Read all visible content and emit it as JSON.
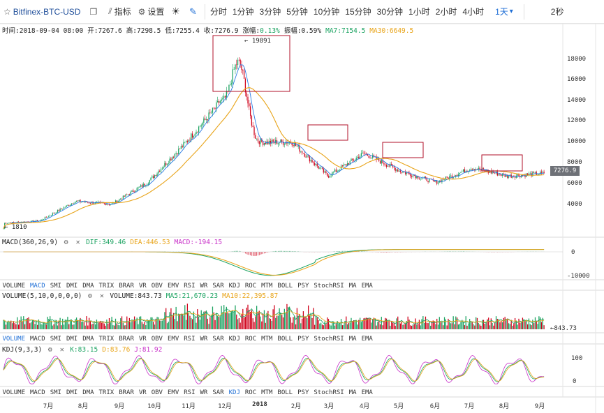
{
  "toolbar": {
    "star_icon": "star-icon",
    "symbol": "Bitfinex-BTC-USD",
    "copy_icon": "copy-icon",
    "indicator_label": "指标",
    "settings_label": "设置",
    "theme_icon": "sun-icon",
    "draw_icon": "pencil-icon",
    "intervals": [
      "分时",
      "1分钟",
      "3分钟",
      "5分钟",
      "10分钟",
      "15分钟",
      "30分钟",
      "1小时",
      "2小时",
      "4小时"
    ],
    "selected_interval": "1天",
    "dropdown_icon": "▾",
    "refresh": "2秒"
  },
  "info": {
    "time": "时间:2018-09-04 08:00",
    "open": "开:7267.6",
    "high": "高:7298.5",
    "low": "低:7255.4",
    "close": "收:7276.9",
    "change_label": "涨幅:",
    "change_value": "0.13%",
    "amplitude": "振幅:0.59%",
    "ma7": "MA7:7154.5",
    "ma30": "MA30:6649.5"
  },
  "macd": {
    "title": "MACD(360,26,9)",
    "dif": "DIF:349.46",
    "dea": "DEA:446.53",
    "macd": "MACD:-194.15"
  },
  "volume": {
    "title": "VOLUME(5,10,0,0,0,0)",
    "vol": "VOLUME:843.73",
    "ma5": "MA5:21,670.23",
    "ma10": "MA10:22,395.87"
  },
  "kdj": {
    "title": "KDJ(9,3,3)",
    "k": "K:83.15",
    "d": "D:83.76",
    "j": "J:81.92"
  },
  "indicator_tabs": [
    "VOLUME",
    "MACD",
    "SMI",
    "DMI",
    "DMA",
    "TRIX",
    "BRAR",
    "VR",
    "OBV",
    "EMV",
    "RSI",
    "WR",
    "SAR",
    "KDJ",
    "ROC",
    "MTM",
    "BOLL",
    "PSY",
    "StochRSI",
    "MA",
    "EMA"
  ],
  "tabs_row1_active": "MACD",
  "tabs_row2_active": "VOLUME",
  "tabs_row3_active": "KDJ",
  "price_axis": [
    "18000",
    "16000",
    "14000",
    "12000",
    "10000",
    "8000",
    "6000",
    "4000"
  ],
  "macd_axis": [
    "0",
    "-10000"
  ],
  "volume_last": "843.73",
  "kdj_axis": [
    "100",
    "0"
  ],
  "x_axis": [
    "7月",
    "8月",
    "9月",
    "10月",
    "11月",
    "12月",
    "2018",
    "2月",
    "3月",
    "4月",
    "5月",
    "6月",
    "7月",
    "8月",
    "9月"
  ],
  "annotations": {
    "high": "19891",
    "low": "1810"
  },
  "last_price": "7276.9",
  "colors": {
    "up": "#1aa260",
    "down": "#d0021b",
    "ma7": "#2a7be4",
    "ma30": "#e8a317",
    "box": "#b0102a"
  },
  "chart_data": {
    "type": "candlestick",
    "title": "Bitfinex-BTC-USD",
    "period": "1天",
    "x_range": [
      "2017-06",
      "2018-09"
    ],
    "ylim": [
      1810,
      19891
    ],
    "monthly_closes": [
      {
        "month": "2017-06",
        "close": 2500
      },
      {
        "month": "2017-07",
        "close": 2700
      },
      {
        "month": "2017-08",
        "close": 4600
      },
      {
        "month": "2017-09",
        "close": 4300
      },
      {
        "month": "2017-10",
        "close": 6400
      },
      {
        "month": "2017-11",
        "close": 10000
      },
      {
        "month": "2017-12",
        "close": 14000
      },
      {
        "month": "2018-01",
        "close": 10200
      },
      {
        "month": "2018-02",
        "close": 10300
      },
      {
        "month": "2018-03",
        "close": 7000
      },
      {
        "month": "2018-04",
        "close": 9200
      },
      {
        "month": "2018-05",
        "close": 7500
      },
      {
        "month": "2018-06",
        "close": 6400
      },
      {
        "month": "2018-07",
        "close": 7800
      },
      {
        "month": "2018-08",
        "close": 7000
      },
      {
        "month": "2018-09",
        "close": 7276.9
      }
    ],
    "high_point": 19891,
    "low_point": 1810,
    "last_close": 7276.9
  }
}
